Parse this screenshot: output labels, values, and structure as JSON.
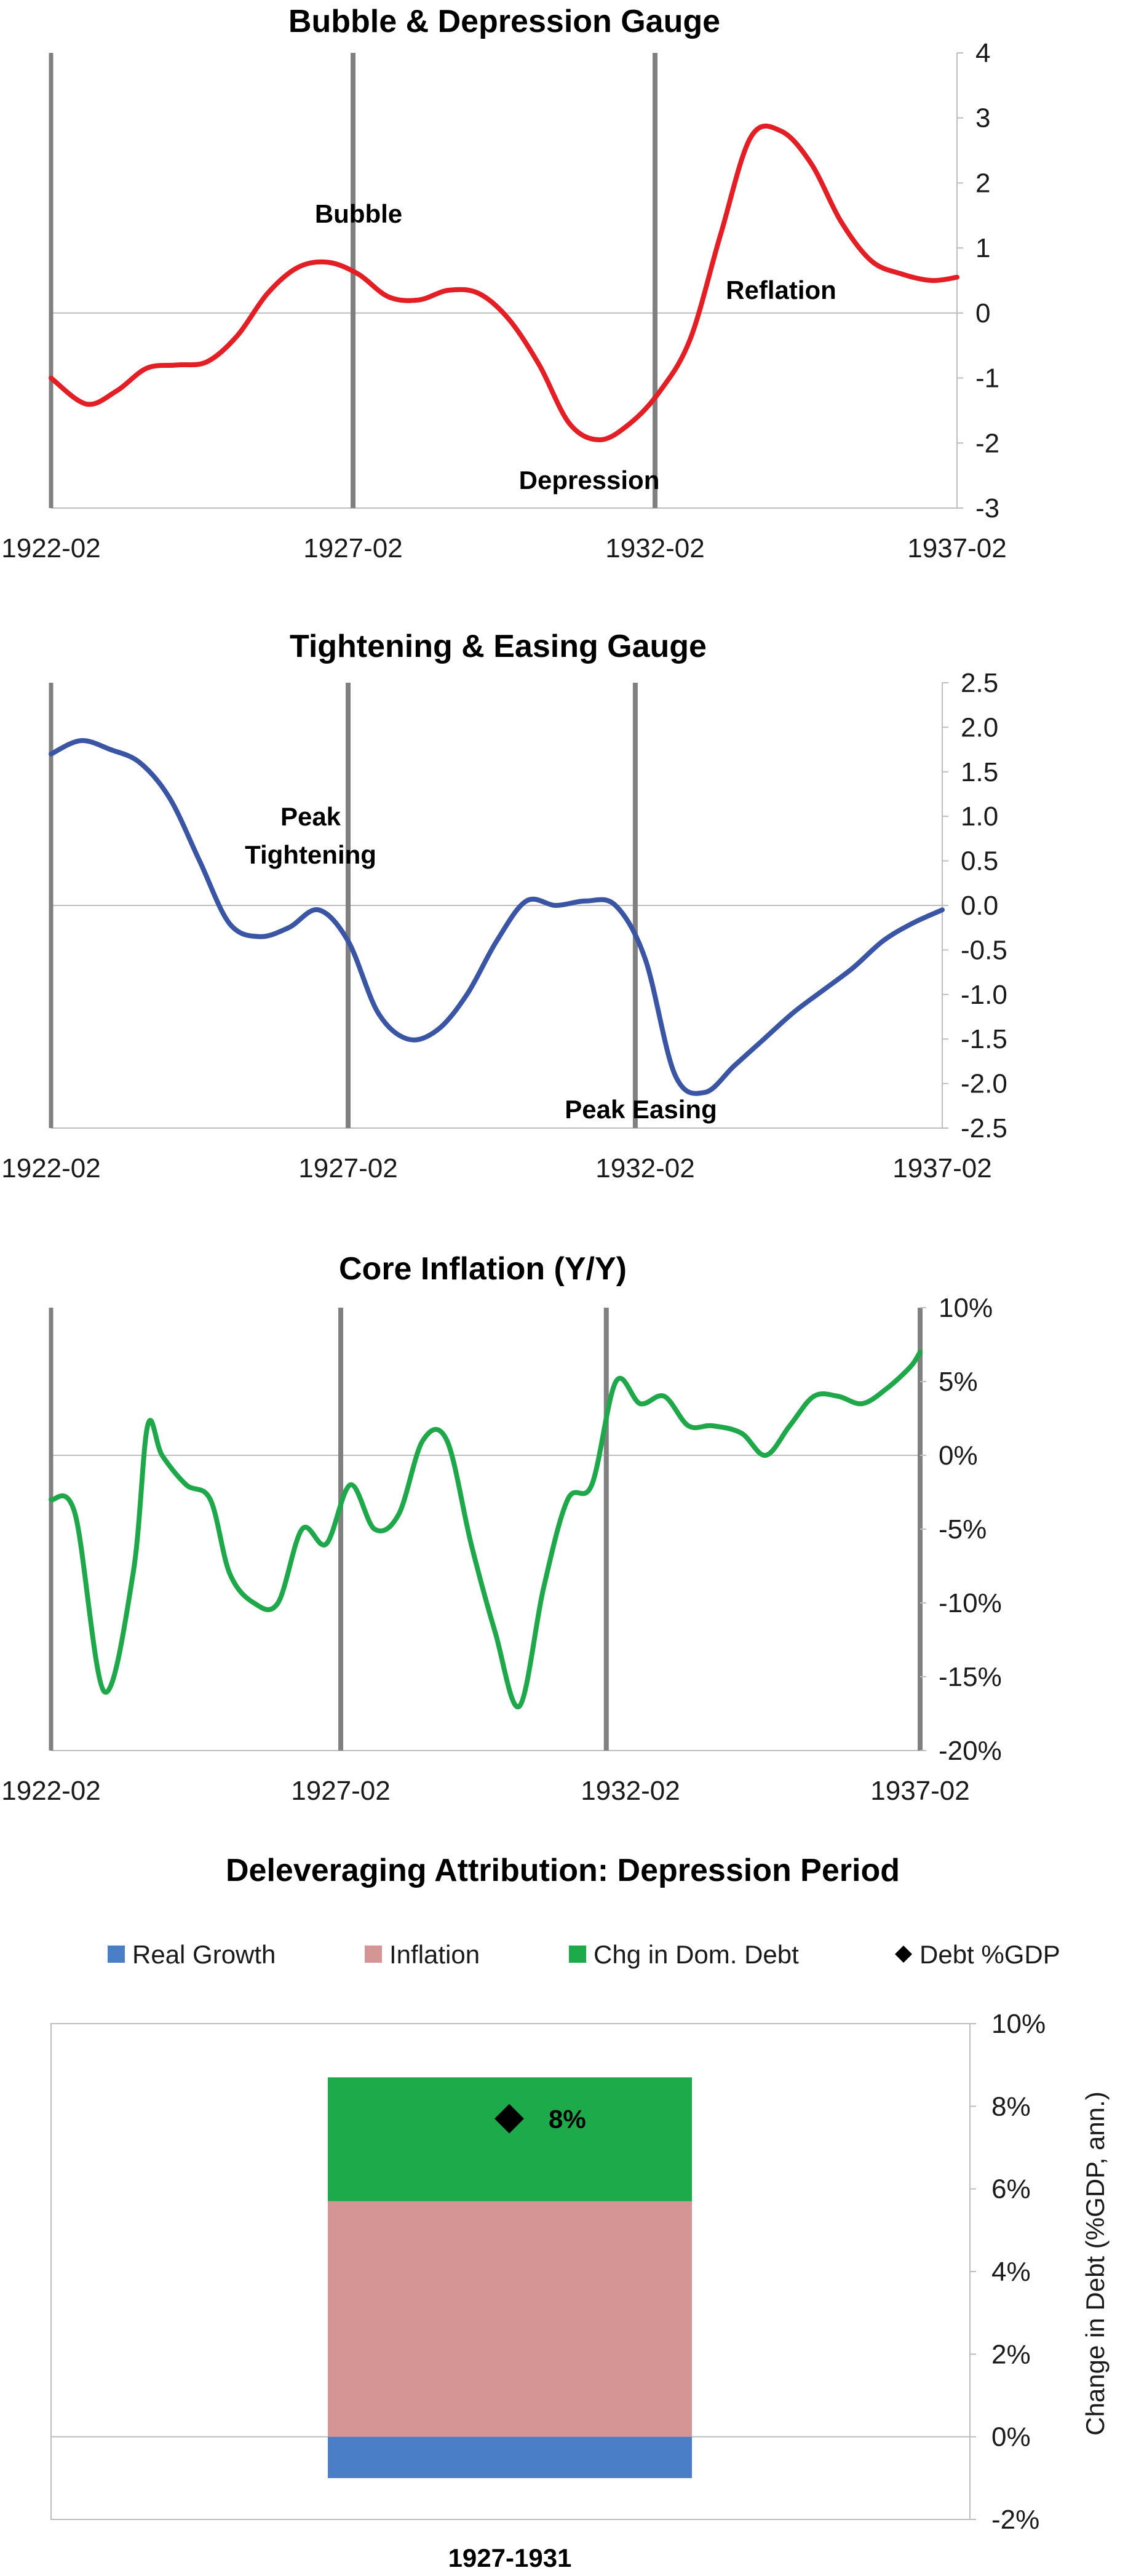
{
  "chart_data": [
    {
      "type": "line",
      "title": "Bubble & Depression Gauge",
      "x_ticks": [
        "1922-02",
        "1927-02",
        "1932-02",
        "1937-02"
      ],
      "x_range": [
        "1922-02",
        "1937-02"
      ],
      "ylim": [
        -3,
        4
      ],
      "y_ticks": [
        "4",
        "3",
        "2",
        "1",
        "0",
        "-1",
        "-2",
        "-3"
      ],
      "vertical_markers": [
        "1922-02",
        "1927-02",
        "1932-02"
      ],
      "annotations": [
        {
          "text": "Bubble",
          "near": "1927-02"
        },
        {
          "text": "Depression",
          "near": "1931-12"
        },
        {
          "text": "Reflation",
          "near": "1934-07"
        }
      ],
      "color": "#e31e24",
      "series": [
        {
          "x": [
            "1922-02",
            "1922-09",
            "1923-03",
            "1923-09",
            "1924-03",
            "1924-09",
            "1925-03",
            "1925-09",
            "1926-03",
            "1926-09",
            "1927-03",
            "1927-09",
            "1928-03",
            "1928-09",
            "1929-03",
            "1929-09",
            "1930-03",
            "1930-09",
            "1931-03",
            "1931-09",
            "1932-03",
            "1932-09",
            "1933-03",
            "1933-09",
            "1934-03",
            "1934-09",
            "1935-03",
            "1935-09",
            "1936-03",
            "1936-09",
            "1937-02"
          ],
          "values": [
            -1.0,
            -1.4,
            -1.2,
            -0.85,
            -0.8,
            -0.75,
            -0.35,
            0.3,
            0.7,
            0.78,
            0.6,
            0.25,
            0.2,
            0.35,
            0.3,
            -0.1,
            -0.8,
            -1.7,
            -1.95,
            -1.7,
            -1.2,
            -0.4,
            1.2,
            2.7,
            2.8,
            2.3,
            1.4,
            0.8,
            0.6,
            0.5,
            0.55
          ]
        }
      ]
    },
    {
      "type": "line",
      "title": "Tightening & Easing Gauge",
      "x_ticks": [
        "1922-02",
        "1927-02",
        "1932-02",
        "1937-02"
      ],
      "x_range": [
        "1922-02",
        "1937-02"
      ],
      "ylim": [
        -2.5,
        2.5
      ],
      "y_ticks": [
        "2.5",
        "2.0",
        "1.5",
        "1.0",
        "0.5",
        "0.0",
        "-0.5",
        "-1.0",
        "-1.5",
        "-2.0",
        "-2.5"
      ],
      "vertical_markers": [
        "1922-02",
        "1927-02",
        "1931-12"
      ],
      "annotations": [
        {
          "text": "Peak",
          "near": "1926-08"
        },
        {
          "text": "Tightening",
          "near": "1926-08"
        },
        {
          "text": "Peak Easing",
          "near": "1932-01"
        }
      ],
      "color": "#3a55a4",
      "series": [
        {
          "x": [
            "1922-02",
            "1922-08",
            "1923-02",
            "1923-08",
            "1924-02",
            "1924-08",
            "1925-02",
            "1925-08",
            "1926-02",
            "1926-08",
            "1927-02",
            "1927-08",
            "1928-02",
            "1928-08",
            "1929-02",
            "1929-08",
            "1930-02",
            "1930-08",
            "1931-02",
            "1931-08",
            "1932-02",
            "1932-08",
            "1933-02",
            "1933-08",
            "1934-02",
            "1934-08",
            "1935-02",
            "1935-08",
            "1936-02",
            "1936-08",
            "1937-02"
          ],
          "values": [
            1.7,
            1.85,
            1.75,
            1.6,
            1.2,
            0.5,
            -0.2,
            -0.35,
            -0.25,
            -0.05,
            -0.4,
            -1.2,
            -1.5,
            -1.4,
            -1.0,
            -0.4,
            0.05,
            0.0,
            0.05,
            0.0,
            -0.6,
            -1.9,
            -2.1,
            -1.8,
            -1.5,
            -1.2,
            -0.95,
            -0.7,
            -0.4,
            -0.2,
            -0.05
          ]
        }
      ]
    },
    {
      "type": "line",
      "title": "Core Inflation (Y/Y)",
      "x_ticks": [
        "1922-02",
        "1927-02",
        "1932-02",
        "1937-02"
      ],
      "x_range": [
        "1922-02",
        "1937-02"
      ],
      "ylim": [
        -20,
        10
      ],
      "y_ticks": [
        "10%",
        "5%",
        "0%",
        "-5%",
        "-10%",
        "-15%",
        "-20%"
      ],
      "vertical_markers": [
        "1922-02",
        "1927-02",
        "1931-09",
        "1937-02"
      ],
      "color": "#1fa84a",
      "series": [
        {
          "x": [
            "1922-02",
            "1922-07",
            "1923-01",
            "1923-07",
            "1923-10",
            "1924-01",
            "1924-06",
            "1924-11",
            "1925-03",
            "1925-08",
            "1926-01",
            "1926-06",
            "1926-11",
            "1927-04",
            "1927-09",
            "1928-02",
            "1928-07",
            "1928-12",
            "1929-05",
            "1929-10",
            "1930-03",
            "1930-08",
            "1931-01",
            "1931-06",
            "1931-11",
            "1932-04",
            "1932-09",
            "1933-02",
            "1933-07",
            "1934-01",
            "1934-06",
            "1934-11",
            "1935-04",
            "1935-09",
            "1936-02",
            "1936-07",
            "1936-12",
            "1937-02"
          ],
          "values": [
            -3,
            -4,
            -16,
            -8,
            2,
            0,
            -2,
            -3,
            -8,
            -10,
            -10,
            -5,
            -6,
            -2,
            -5,
            -4,
            1,
            1,
            -6,
            -12,
            -17,
            -9,
            -3,
            -2,
            5,
            3.5,
            4,
            2,
            2,
            1.5,
            0,
            2,
            4,
            4,
            3.5,
            4.5,
            6,
            7
          ]
        }
      ]
    },
    {
      "type": "bar",
      "stacked": true,
      "title": "Deleveraging Attribution: Depression Period",
      "ylabel": "Change in Debt (%GDP, ann.)",
      "ylim": [
        -2,
        10
      ],
      "y_ticks": [
        "10%",
        "8%",
        "6%",
        "4%",
        "2%",
        "0%",
        "-2%"
      ],
      "legend_position": "top",
      "categories": [
        "1927-1931"
      ],
      "series": [
        {
          "name": "Real Growth",
          "color": "#4a7ec6",
          "values": [
            -1.0
          ]
        },
        {
          "name": "Inflation",
          "color": "#d59594",
          "values": [
            5.7
          ]
        },
        {
          "name": "Chg in Dom. Debt",
          "color": "#1daa4a",
          "values": [
            3.0
          ]
        }
      ],
      "points": [
        {
          "name": "Debt %GDP",
          "marker": "diamond",
          "color": "#000000",
          "values": [
            7.7
          ],
          "label": "8%"
        }
      ]
    }
  ]
}
